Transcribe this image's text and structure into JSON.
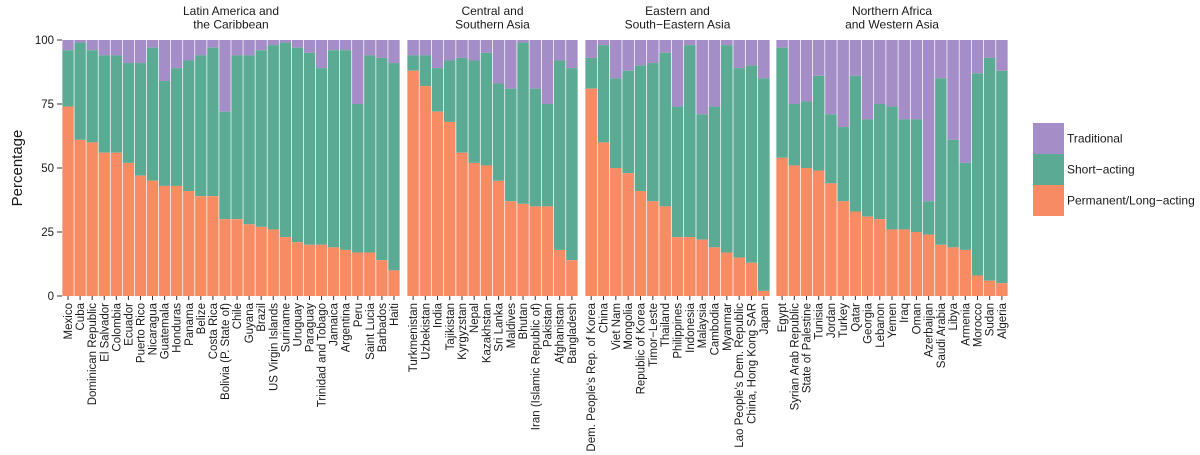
{
  "chart_data": {
    "type": "bar",
    "stacked": true,
    "ylabel": "Percentage",
    "ylim": [
      0,
      100
    ],
    "yticks": [
      0,
      25,
      50,
      75,
      100
    ],
    "grid": false,
    "legend_position": "right",
    "series": [
      {
        "name": "Traditional",
        "color": "#A58EC7"
      },
      {
        "name": "Short−acting",
        "color": "#5BAA93"
      },
      {
        "name": "Permanent/Long−acting",
        "color": "#F78B64"
      }
    ],
    "panels": [
      {
        "title": [
          "Latin America and",
          "the Caribbean"
        ],
        "categories": [
          "Mexico",
          "Cuba",
          "Dominican Republic",
          "El Salvador",
          "Colombia",
          "Ecuador",
          "Puerto Rico",
          "Nicaragua",
          "Guatemala",
          "Honduras",
          "Panama",
          "Belize",
          "Costa Rica",
          "Bolivia (P. State of)",
          "Chile",
          "Guyana",
          "Brazil",
          "US Virgin Islands",
          "Suriname",
          "Uruguay",
          "Paraguay",
          "Trinidad and Tobago",
          "Jamaica",
          "Argentina",
          "Peru",
          "Saint Lucia",
          "Barbados",
          "Haiti"
        ],
        "permanent": [
          74,
          61,
          60,
          56,
          56,
          52,
          47,
          45,
          43,
          43,
          41,
          39,
          39,
          30,
          30,
          28,
          27,
          26,
          23,
          21,
          20,
          20,
          19,
          18,
          17,
          17,
          14,
          10
        ],
        "short": [
          22,
          38,
          36,
          38,
          38,
          39,
          44,
          52,
          41,
          46,
          51,
          55,
          58,
          42,
          64,
          66,
          69,
          72,
          76,
          76,
          75,
          69,
          77,
          78,
          58,
          77,
          79,
          81
        ]
      },
      {
        "title": [
          "Central and",
          "Southern Asia"
        ],
        "categories": [
          "Turkmenistan",
          "Uzbekistan",
          "India",
          "Tajikistan",
          "Kyrgyzstan",
          "Nepal",
          "Kazakhstan",
          "Sri Lanka",
          "Maldives",
          "Bhutan",
          "Iran (Islamic Republic of)",
          "Pakistan",
          "Afghanistan",
          "Bangladesh"
        ],
        "permanent": [
          88,
          82,
          72,
          68,
          56,
          52,
          51,
          45,
          37,
          36,
          35,
          35,
          18,
          14
        ],
        "short": [
          6,
          12,
          17,
          24,
          37,
          40,
          44,
          38,
          44,
          63,
          46,
          40,
          74,
          75
        ]
      },
      {
        "title": [
          "Eastern and",
          "South−Eastern Asia"
        ],
        "categories": [
          "Dem. People's Rep. of Korea",
          "China",
          "Viet Nam",
          "Mongolia",
          "Republic of Korea",
          "Timor−Leste",
          "Thailand",
          "Philippines",
          "Indonesia",
          "Malaysia",
          "Cambodia",
          "Myanmar",
          "Lao People's Dem. Republic",
          "China, Hong Kong SAR",
          "Japan"
        ],
        "permanent": [
          81,
          60,
          50,
          48,
          41,
          37,
          35,
          23,
          23,
          22,
          19,
          17,
          15,
          13,
          2
        ],
        "short": [
          12,
          38,
          35,
          40,
          49,
          54,
          60,
          51,
          75,
          49,
          55,
          81,
          74,
          77,
          83
        ]
      },
      {
        "title": [
          "Northern Africa",
          "and Western Asia"
        ],
        "categories": [
          "Egypt",
          "Syrian Arab Republic",
          "State of Palestine",
          "Tunisia",
          "Jordan",
          "Turkey",
          "Qatar",
          "Georgia",
          "Lebanon",
          "Yemen",
          "Iraq",
          "Oman",
          "Azerbaijan",
          "Saudi Arabia",
          "Libya",
          "Armenia",
          "Morocco",
          "Sudan",
          "Algeria"
        ],
        "permanent": [
          54,
          51,
          50,
          49,
          44,
          37,
          33,
          31,
          30,
          26,
          26,
          25,
          24,
          20,
          19,
          18,
          8,
          6,
          5
        ],
        "short": [
          43,
          24,
          26,
          37,
          27,
          29,
          53,
          38,
          45,
          48,
          43,
          44,
          13,
          65,
          42,
          34,
          79,
          87,
          83
        ]
      }
    ]
  }
}
